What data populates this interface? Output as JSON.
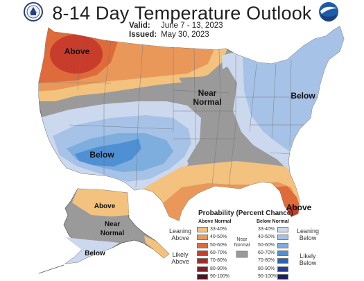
{
  "title": "8-14 Day Temperature Outlook",
  "valid_label": "Valid:",
  "valid_value": "June 7 - 13, 2023",
  "issued_label": "Issued:",
  "issued_value": "May 30, 2023",
  "logos": {
    "left": "doc-seal-icon",
    "right": "noaa-logo-icon"
  },
  "region_labels": {
    "nw_above": "Above",
    "central_near": "Near Normal",
    "east_below": "Below",
    "sw_below": "Below",
    "se_above": "Above",
    "ak_above": "Above",
    "ak_near": "Near Normal",
    "ak_below": "Below"
  },
  "legend": {
    "title": "Probability (Percent Chance)",
    "above_header": "Above Normal",
    "below_header": "Below Normal",
    "near_label": "Near Normal",
    "leaning_above": "Leaning Above",
    "likely_above": "Likely Above",
    "leaning_below": "Leaning Below",
    "likely_below": "Likely Below",
    "above_bins": [
      {
        "label": "33-40%",
        "color": "#f2c27e"
      },
      {
        "label": "40-50%",
        "color": "#e9985a"
      },
      {
        "label": "50-60%",
        "color": "#df6a3a"
      },
      {
        "label": "60-70%",
        "color": "#c83c2c"
      },
      {
        "label": "70-80%",
        "color": "#a42a28"
      },
      {
        "label": "80-90%",
        "color": "#7e1e24"
      },
      {
        "label": "90-100%",
        "color": "#52141a"
      }
    ],
    "below_bins": [
      {
        "label": "33-40%",
        "color": "#ccd8ee"
      },
      {
        "label": "40-50%",
        "color": "#a6c2e6"
      },
      {
        "label": "50-60%",
        "color": "#7daede"
      },
      {
        "label": "60-70%",
        "color": "#4f90d4"
      },
      {
        "label": "70-80%",
        "color": "#2a64b3"
      },
      {
        "label": "80-90%",
        "color": "#243c8e"
      },
      {
        "label": "90-100%",
        "color": "#1c1e63"
      }
    ],
    "near_color": "#9a9a9a"
  }
}
